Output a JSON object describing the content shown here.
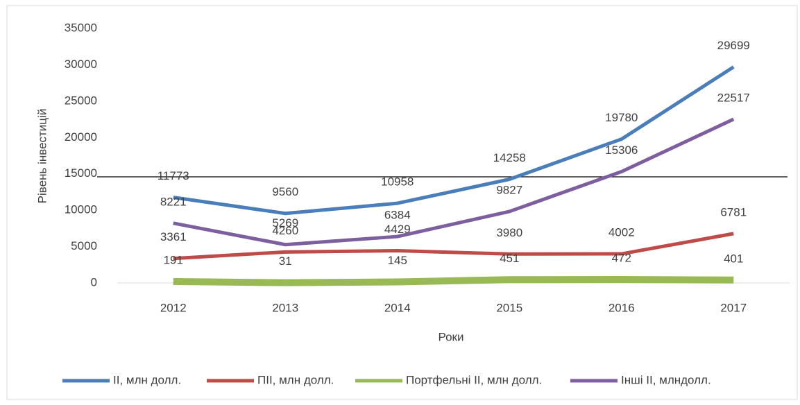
{
  "chart_data": {
    "type": "line",
    "x_label": "Роки",
    "y_label": "Рівень інвестицій",
    "categories": [
      "2012",
      "2013",
      "2014",
      "2015",
      "2016",
      "2017"
    ],
    "series": [
      {
        "name": "ІІ, млн долл.",
        "color": "#4a7ebb",
        "values": [
          11773,
          9560,
          10958,
          14258,
          19780,
          29699
        ]
      },
      {
        "name": "ПІІ, млн долл.",
        "color": "#be4b48",
        "values": [
          3361,
          4260,
          4429,
          3980,
          4002,
          6781
        ]
      },
      {
        "name": "Портфельні ІІ, млн долл.",
        "color": "#98b954",
        "values": [
          191,
          31,
          145,
          451,
          472,
          401
        ]
      },
      {
        "name": "Інші ІІ, млндолл.",
        "color": "#7d5fa0",
        "values": [
          8221,
          5269,
          6384,
          9827,
          15306,
          22517
        ]
      }
    ],
    "ylim": [
      0,
      35000
    ],
    "yticks": [
      0,
      5000,
      10000,
      15000,
      20000,
      25000,
      30000,
      35000
    ],
    "grid": false,
    "legend": "bottom"
  }
}
